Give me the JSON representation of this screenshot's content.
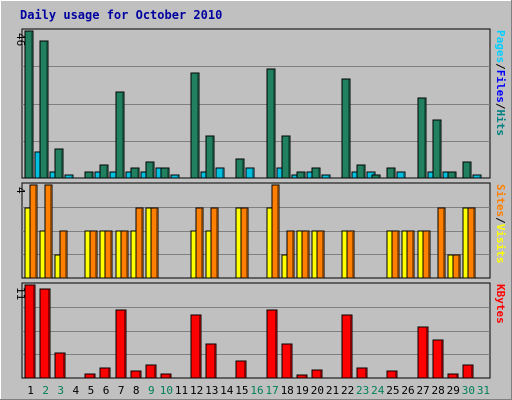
{
  "chart_data": {
    "type": "bar",
    "title": "Daily usage for October 2010",
    "categories": [
      "1",
      "2",
      "3",
      "4",
      "5",
      "6",
      "7",
      "8",
      "9",
      "10",
      "11",
      "12",
      "13",
      "14",
      "15",
      "16",
      "17",
      "18",
      "19",
      "20",
      "21",
      "22",
      "23",
      "24",
      "25",
      "26",
      "27",
      "28",
      "29",
      "30",
      "31"
    ],
    "weekend_days": [
      "2",
      "3",
      "9",
      "10",
      "16",
      "17",
      "23",
      "24",
      "30",
      "31"
    ],
    "panels": [
      {
        "id": "hits",
        "ymax_label": "46",
        "ylim": [
          0,
          46
        ],
        "legend": [
          "Pages",
          "/",
          "Files",
          "/",
          "Hits"
        ],
        "legend_colors": [
          "#00d0ff",
          "#000000",
          "#0000ff",
          "#000000",
          "#008080"
        ],
        "series": [
          {
            "name": "Hits",
            "color": "#208060",
            "values": [
              46,
              43,
              9,
              0,
              2,
              4,
              27,
              3,
              5,
              3,
              0,
              33,
              13,
              0,
              6,
              0,
              34,
              13,
              2,
              3,
              0,
              31,
              4,
              1,
              3,
              0,
              25,
              18,
              2,
              5,
              0
            ]
          },
          {
            "name": "Files",
            "color": "#0060b0",
            "values": [
              0,
              0,
              0,
              0,
              0,
              0,
              0,
              0,
              0,
              0,
              0,
              0,
              0,
              0,
              0,
              0,
              0,
              0,
              0,
              0,
              0,
              0,
              0,
              0,
              0,
              0,
              0,
              0,
              0,
              0,
              0
            ]
          },
          {
            "name": "Pages",
            "color": "#00c0e0",
            "values": [
              8,
              2,
              1,
              0,
              2,
              2,
              2,
              2,
              3,
              1,
              0,
              2,
              3,
              0,
              3,
              0,
              3,
              1,
              2,
              1,
              0,
              2,
              2,
              0,
              2,
              0,
              2,
              2,
              0,
              1,
              0
            ]
          }
        ]
      },
      {
        "id": "visits",
        "ymax_label": "4",
        "ylim": [
          0,
          4
        ],
        "legend": [
          "Sites",
          "/",
          "Visits"
        ],
        "legend_colors": [
          "#ff8000",
          "#000000",
          "#ffff00"
        ],
        "series": [
          {
            "name": "Sites",
            "color": "#ffff00",
            "values": [
              3,
              2,
              1,
              0,
              2,
              2,
              2,
              2,
              3,
              0,
              0,
              2,
              2,
              0,
              3,
              0,
              3,
              1,
              2,
              2,
              0,
              2,
              0,
              0,
              2,
              2,
              2,
              0,
              1,
              3,
              0
            ]
          },
          {
            "name": "Visits",
            "color": "#ff8000",
            "values": [
              4,
              4,
              2,
              0,
              2,
              2,
              2,
              3,
              3,
              0,
              0,
              3,
              3,
              0,
              3,
              0,
              4,
              2,
              2,
              2,
              0,
              2,
              0,
              0,
              2,
              2,
              2,
              3,
              1,
              3,
              0
            ]
          }
        ]
      },
      {
        "id": "kbytes",
        "ymax_label": "11",
        "ylim": [
          0,
          11
        ],
        "legend": [
          "KBytes"
        ],
        "legend_colors": [
          "#ff0000"
        ],
        "series": [
          {
            "name": "KBytes",
            "color": "#ff0000",
            "values": [
              11,
              10.5,
              3,
              0,
              0.5,
              1.2,
              8,
              0.8,
              1.5,
              0.5,
              0,
              7.5,
              4,
              0,
              2,
              0,
              8,
              4,
              0.3,
              1,
              0,
              7.5,
              1.2,
              0,
              0.8,
              0,
              6,
              4.5,
              0.5,
              1.5,
              0
            ]
          }
        ]
      }
    ],
    "grid": true
  }
}
